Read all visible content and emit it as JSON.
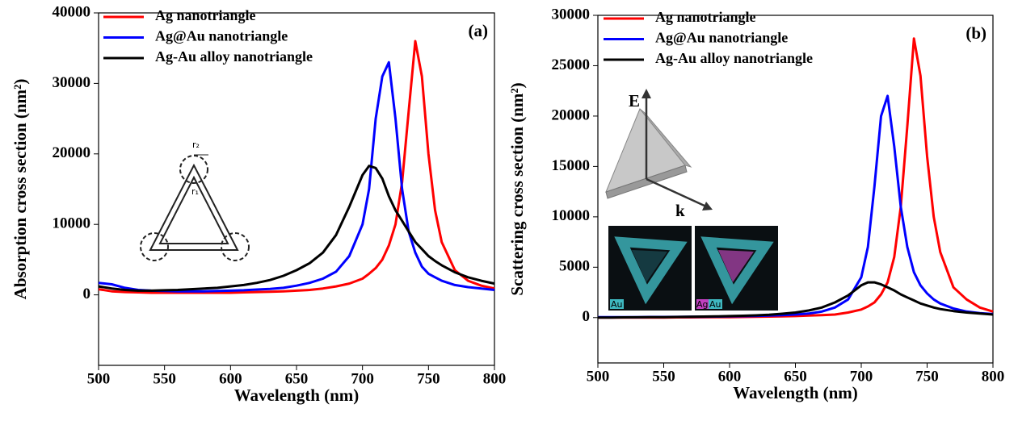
{
  "chart_data": [
    {
      "type": "line",
      "panel_label": "(a)",
      "xlabel": "Wavelength (nm)",
      "ylabel": "Absorption cross section (nm²)",
      "x": [
        500,
        510,
        520,
        530,
        540,
        550,
        560,
        570,
        580,
        590,
        600,
        610,
        620,
        630,
        640,
        650,
        660,
        670,
        680,
        690,
        700,
        705,
        710,
        715,
        720,
        725,
        730,
        735,
        740,
        745,
        750,
        755,
        760,
        770,
        780,
        790,
        800
      ],
      "series": [
        {
          "name": "Ag nanotriangle",
          "color": "#ff0000",
          "values": [
            800,
            500,
            400,
            350,
            300,
            300,
            300,
            300,
            300,
            300,
            300,
            350,
            400,
            450,
            500,
            600,
            700,
            900,
            1200,
            1600,
            2300,
            3000,
            3800,
            5000,
            7000,
            10000,
            16000,
            26000,
            36000,
            31000,
            20000,
            12000,
            7500,
            3500,
            2000,
            1300,
            900
          ]
        },
        {
          "name": "Ag@Au nanotriangle",
          "color": "#0000ff",
          "values": [
            1700,
            1500,
            1000,
            700,
            600,
            550,
            500,
            500,
            500,
            550,
            600,
            650,
            750,
            850,
            1000,
            1300,
            1700,
            2300,
            3300,
            5500,
            10000,
            15000,
            25000,
            31000,
            33000,
            25000,
            15000,
            9000,
            6000,
            4000,
            3000,
            2500,
            2000,
            1400,
            1100,
            900,
            700
          ]
        },
        {
          "name": "Ag-Au alloy nanotriangle",
          "color": "#000000",
          "values": [
            1200,
            900,
            700,
            600,
            600,
            650,
            700,
            800,
            900,
            1000,
            1200,
            1400,
            1700,
            2100,
            2700,
            3500,
            4500,
            6000,
            8500,
            12500,
            17000,
            18300,
            18000,
            16500,
            14000,
            12000,
            10500,
            9000,
            7500,
            6500,
            5500,
            4800,
            4200,
            3200,
            2500,
            2000,
            1600
          ]
        }
      ],
      "xlim": [
        500,
        800
      ],
      "xticks": [
        500,
        550,
        600,
        650,
        700,
        750,
        800
      ],
      "ylim": [
        -10000,
        40000
      ],
      "yticks": [
        0,
        10000,
        20000,
        30000,
        40000
      ],
      "legend": "upper left",
      "inset_labels": [
        "r₂",
        "r₁"
      ]
    },
    {
      "type": "line",
      "panel_label": "(b)",
      "xlabel": "Wavelength (nm)",
      "ylabel": "Scattering cross section (nm²)",
      "x": [
        500,
        510,
        520,
        530,
        540,
        550,
        560,
        570,
        580,
        590,
        600,
        610,
        620,
        630,
        640,
        650,
        660,
        670,
        680,
        690,
        700,
        705,
        710,
        715,
        720,
        725,
        730,
        735,
        740,
        745,
        750,
        755,
        760,
        770,
        780,
        790,
        800
      ],
      "series": [
        {
          "name": "Ag nanotriangle",
          "color": "#ff0000",
          "values": [
            0,
            0,
            0,
            0,
            10,
            10,
            20,
            20,
            30,
            40,
            50,
            60,
            80,
            100,
            120,
            150,
            200,
            250,
            300,
            500,
            800,
            1100,
            1500,
            2300,
            3500,
            6000,
            11000,
            19000,
            27700,
            24000,
            16000,
            10000,
            6500,
            3000,
            1800,
            1000,
            600
          ]
        },
        {
          "name": "Ag@Au nanotriangle",
          "color": "#0000ff",
          "values": [
            50,
            50,
            50,
            50,
            60,
            60,
            70,
            80,
            90,
            100,
            120,
            140,
            170,
            200,
            240,
            300,
            400,
            600,
            1000,
            1800,
            4000,
            7000,
            13000,
            20000,
            22000,
            17000,
            11000,
            7000,
            4500,
            3200,
            2400,
            1800,
            1400,
            900,
            600,
            450,
            350
          ]
        },
        {
          "name": "Ag-Au alloy nanotriangle",
          "color": "#000000",
          "values": [
            0,
            10,
            20,
            30,
            40,
            50,
            60,
            80,
            100,
            120,
            150,
            180,
            220,
            280,
            380,
            500,
            700,
            1000,
            1500,
            2200,
            3200,
            3500,
            3500,
            3300,
            3000,
            2700,
            2300,
            2000,
            1700,
            1400,
            1200,
            1000,
            850,
            650,
            500,
            400,
            300
          ]
        }
      ],
      "xlim": [
        500,
        800
      ],
      "xticks": [
        500,
        550,
        600,
        650,
        700,
        750,
        800
      ],
      "ylim": [
        -4500,
        30000
      ],
      "yticks": [
        0,
        5000,
        10000,
        15000,
        20000,
        25000,
        30000
      ],
      "legend": "upper left",
      "inset_labels": [
        "E",
        "k",
        "Au",
        "Ag",
        "Au"
      ]
    }
  ]
}
